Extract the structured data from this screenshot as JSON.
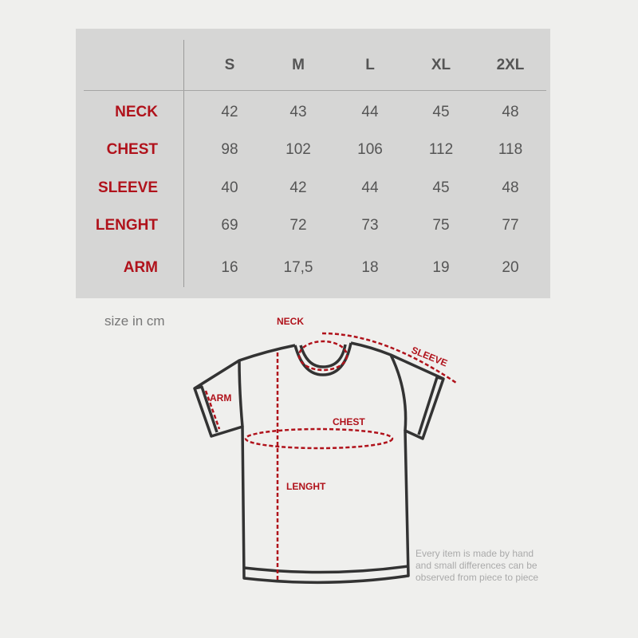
{
  "table": {
    "sizes": [
      "S",
      "M",
      "L",
      "XL",
      "2XL"
    ],
    "rows": [
      {
        "label": "NECK",
        "values": [
          "42",
          "43",
          "44",
          "45",
          "48"
        ]
      },
      {
        "label": "CHEST",
        "values": [
          "98",
          "102",
          "106",
          "112",
          "118"
        ]
      },
      {
        "label": "SLEEVE",
        "values": [
          "40",
          "42",
          "44",
          "45",
          "48"
        ]
      },
      {
        "label": "LENGHT",
        "values": [
          "69",
          "72",
          "73",
          "75",
          "77"
        ]
      },
      {
        "label": "ARM",
        "values": [
          "16",
          "17,5",
          "18",
          "19",
          "20"
        ]
      }
    ]
  },
  "unit_note": "size in cm",
  "diagram": {
    "neck": "NECK",
    "sleeve": "SLEEVE",
    "arm": "ARM",
    "chest": "CHEST",
    "length": "LENGHT"
  },
  "disclaimer": [
    "Every item is made by hand",
    "and small differences can be",
    "observed from piece to piece"
  ],
  "colors": {
    "accent": "#b0121b",
    "panel": "#d6d6d5",
    "background": "#efefed"
  }
}
